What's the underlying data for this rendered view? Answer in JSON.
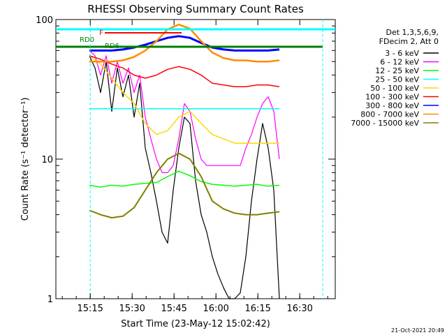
{
  "chart_data": {
    "type": "line",
    "title": "RHESSI Observing Summary Count Rates",
    "xlabel": "Start Time (23-May-12 15:02:42)",
    "ylabel": "Count Rate (s⁻¹ detector⁻¹)",
    "yscale": "log",
    "xlim_minutes": [
      0,
      100
    ],
    "ylim": [
      1,
      100
    ],
    "x_ticks": [
      {
        "minute": 12.3,
        "label": "15:15"
      },
      {
        "minute": 27.3,
        "label": "15:30"
      },
      {
        "minute": 42.3,
        "label": "15:45"
      },
      {
        "minute": 57.3,
        "label": "16:00"
      },
      {
        "minute": 72.3,
        "label": "16:15"
      },
      {
        "minute": 87.3,
        "label": "16:30"
      }
    ],
    "y_ticks": [
      {
        "value": 1,
        "label": "1"
      },
      {
        "value": 10,
        "label": "10"
      },
      {
        "value": 100,
        "label": "100"
      }
    ],
    "legend": {
      "position": "right",
      "header": [
        "Det 1,3,5,6,9,",
        "FDecim 2, Att 0"
      ]
    },
    "flags": [
      {
        "label": "RD0",
        "color": "#008000"
      },
      {
        "label": "RD6",
        "color": "#008000"
      },
      {
        "label": "F",
        "color": "#ff0000"
      }
    ],
    "footer_date": "21-Oct-2021 20:49",
    "series": [
      {
        "name": "3 - 6 keV",
        "color": "#000000",
        "x": [
          12,
          14,
          16,
          18,
          20,
          22,
          24,
          26,
          28,
          30,
          32,
          34,
          36,
          38,
          40,
          42,
          44,
          46,
          48,
          50,
          52,
          54,
          56,
          58,
          60,
          62,
          64,
          66,
          68,
          70,
          72,
          74,
          76,
          78,
          80
        ],
        "y": [
          55,
          45,
          30,
          50,
          22,
          45,
          28,
          40,
          20,
          35,
          12,
          8,
          5,
          3,
          2.5,
          6,
          12,
          20,
          18,
          7,
          4,
          3,
          2,
          1.5,
          1.2,
          1,
          1,
          1.1,
          2,
          5,
          10,
          18,
          12,
          6,
          1
        ]
      },
      {
        "name": "6 - 12 keV",
        "color": "#ff00ff",
        "x": [
          12,
          14,
          16,
          18,
          20,
          22,
          24,
          26,
          28,
          30,
          32,
          34,
          36,
          38,
          40,
          42,
          44,
          46,
          48,
          50,
          52,
          54,
          56,
          58,
          60,
          62,
          64,
          66,
          68,
          70,
          72,
          74,
          76,
          78,
          80
        ],
        "y": [
          60,
          55,
          40,
          55,
          35,
          50,
          35,
          45,
          30,
          40,
          20,
          14,
          10,
          8,
          8,
          9,
          14,
          25,
          22,
          14,
          10,
          9,
          9,
          9,
          9,
          9,
          9,
          9,
          12,
          15,
          20,
          25,
          28,
          22,
          10
        ]
      },
      {
        "name": "12 - 25 keV",
        "color": "#00ff00",
        "x": [
          12,
          16,
          20,
          24,
          28,
          32,
          36,
          40,
          44,
          48,
          52,
          56,
          60,
          64,
          68,
          72,
          76,
          80
        ],
        "y": [
          6.5,
          6.3,
          6.5,
          6.4,
          6.6,
          6.7,
          6.8,
          7.5,
          8.2,
          7.6,
          6.9,
          6.6,
          6.5,
          6.4,
          6.5,
          6.6,
          6.4,
          6.5
        ]
      },
      {
        "name": "25 - 50 keV",
        "color": "#00ffff",
        "x": [
          12,
          16,
          20,
          24,
          28,
          32,
          36,
          40,
          44,
          48,
          52,
          56,
          60,
          64,
          68,
          72,
          76,
          80
        ],
        "y": [
          23,
          23,
          23,
          23,
          23,
          23,
          23,
          23,
          23,
          23,
          23,
          23,
          23,
          23,
          23,
          23,
          23,
          23
        ]
      },
      {
        "name": "50 - 100 keV",
        "color": "#ffd700",
        "x": [
          12,
          16,
          20,
          24,
          28,
          32,
          36,
          40,
          44,
          48,
          52,
          56,
          60,
          64,
          68,
          72,
          76,
          80
        ],
        "y": [
          55,
          48,
          38,
          30,
          25,
          18,
          15,
          16,
          20,
          22,
          18,
          15,
          14,
          13,
          13,
          13,
          13,
          13
        ]
      },
      {
        "name": "100 - 300 keV",
        "color": "#ff0000",
        "x": [
          12,
          16,
          20,
          24,
          28,
          32,
          36,
          40,
          44,
          48,
          52,
          56,
          60,
          64,
          68,
          72,
          76,
          80
        ],
        "y": [
          55,
          52,
          48,
          45,
          40,
          38,
          40,
          44,
          46,
          44,
          40,
          35,
          34,
          33,
          33,
          34,
          34,
          33
        ]
      },
      {
        "name": "300 - 800 keV",
        "color": "#0000ff",
        "x": [
          12,
          16,
          20,
          24,
          28,
          32,
          36,
          40,
          44,
          48,
          52,
          56,
          60,
          64,
          68,
          72,
          76,
          80
        ],
        "y": [
          60,
          60,
          60,
          61,
          63,
          66,
          70,
          74,
          76,
          74,
          68,
          63,
          61,
          60,
          60,
          60,
          60,
          61
        ]
      },
      {
        "name": "800 - 7000 keV",
        "color": "#ff8c00",
        "x": [
          12,
          16,
          20,
          24,
          28,
          32,
          36,
          40,
          44,
          48,
          52,
          56,
          60,
          64,
          68,
          72,
          76,
          80
        ],
        "y": [
          50,
          50,
          50,
          51,
          54,
          60,
          70,
          85,
          92,
          86,
          70,
          58,
          53,
          51,
          51,
          50,
          50,
          51
        ]
      },
      {
        "name": "7000 - 15000 keV",
        "color": "#808000",
        "x": [
          12,
          16,
          20,
          24,
          28,
          32,
          36,
          40,
          44,
          48,
          52,
          56,
          60,
          64,
          68,
          72,
          76,
          80
        ],
        "y": [
          4.3,
          4.0,
          3.8,
          3.9,
          4.5,
          6,
          8,
          10,
          11,
          10,
          7.5,
          5,
          4.4,
          4.1,
          4,
          4,
          4.1,
          4.2
        ]
      }
    ]
  }
}
